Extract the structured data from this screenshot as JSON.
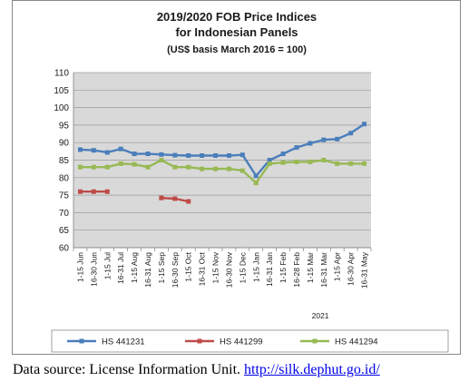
{
  "caption": {
    "prefix": "Data source: License Information Unit. ",
    "link": "http://silk.dephut.go.id/"
  },
  "chart_data": {
    "type": "line",
    "title_lines": [
      "2019/2020 FOB Price Indices",
      "for Indonesian Panels",
      "(US$ basis March 2016 = 100)"
    ],
    "xlabel": "",
    "ylabel": "",
    "ylim": [
      60,
      110
    ],
    "yticks": [
      60,
      65,
      70,
      75,
      80,
      85,
      90,
      95,
      100,
      105,
      110
    ],
    "grid": true,
    "plot_background": "#d9d9d9",
    "year_label": "2021",
    "year_label_start_index": 14,
    "categories": [
      "1-15 Jun",
      "16-30 Jun",
      "1-15 Jul",
      "16-31 Jul",
      "1-15 Aug",
      "16-31 Aug",
      "1-15 Sep",
      "16-30 Sep",
      "1-15 Oct",
      "16-31 Oct",
      "1-15 Nov",
      "16-30 Nov",
      "1-15 Dec",
      "1-15 Jan",
      "16-31 Jan",
      "1-15 Feb",
      "16-28 Feb",
      "1-15 Mar",
      "16-31 Mar",
      "1-15 Apr",
      "16-30 Apr",
      "16-31 May"
    ],
    "series": [
      {
        "name": "HS 441231",
        "color": "#4a7ebb",
        "values": [
          88,
          87.8,
          87.2,
          88.2,
          86.8,
          86.8,
          86.6,
          86.4,
          86.3,
          86.3,
          86.3,
          86.3,
          86.5,
          80.5,
          85.0,
          86.8,
          88.6,
          89.8,
          90.8,
          91.0,
          92.7,
          95.3
        ]
      },
      {
        "name": "HS 441299",
        "color": "#be4b48",
        "values": [
          76,
          76,
          76,
          null,
          null,
          null,
          74.2,
          74.0,
          73.2,
          null,
          null,
          null,
          null,
          null,
          null,
          null,
          null,
          null,
          null,
          null,
          null,
          null
        ]
      },
      {
        "name": "HS 441294",
        "color": "#98b954",
        "values": [
          83,
          83,
          83,
          84,
          83.8,
          83,
          85,
          83,
          83,
          82.5,
          82.5,
          82.5,
          82,
          78.5,
          84.0,
          84.3,
          84.5,
          84.5,
          85.0,
          84.0,
          84.0,
          84.0
        ]
      }
    ],
    "legend_position": "bottom"
  }
}
